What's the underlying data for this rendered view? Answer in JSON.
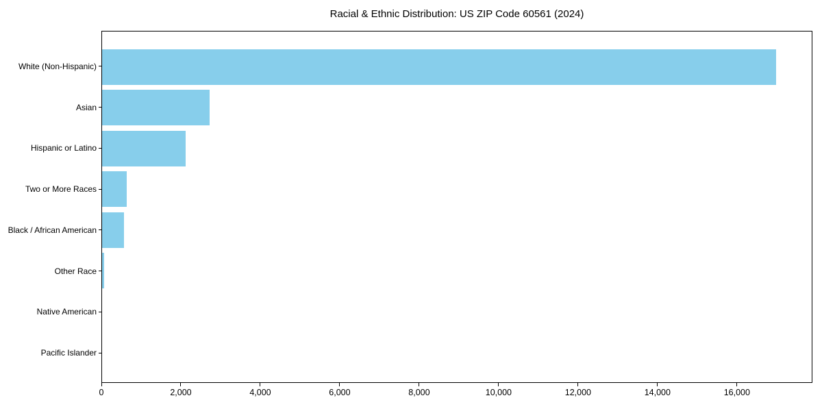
{
  "chart_data": {
    "type": "bar",
    "orientation": "horizontal",
    "title": "Racial & Ethnic Distribution: US ZIP Code 60561 (2024)",
    "categories": [
      "White (Non-Hispanic)",
      "Asian",
      "Hispanic or Latino",
      "Two or More Races",
      "Black / African American",
      "Other Race",
      "Native American",
      "Pacific Islander"
    ],
    "values": [
      17000,
      2720,
      2100,
      620,
      550,
      55,
      0,
      0
    ],
    "xlabel": "",
    "ylabel": "",
    "xlim": [
      0,
      17900
    ],
    "x_tick_values": [
      0,
      2000,
      4000,
      6000,
      8000,
      10000,
      12000,
      14000,
      16000
    ],
    "x_tick_labels": [
      "0",
      "2,000",
      "4,000",
      "6,000",
      "8,000",
      "10,000",
      "12,000",
      "14,000",
      "16,000"
    ],
    "bar_color": "#87CEEB",
    "axis_color": "#000000",
    "background_color": "#FFFFFF",
    "grid": false,
    "legend": null
  }
}
